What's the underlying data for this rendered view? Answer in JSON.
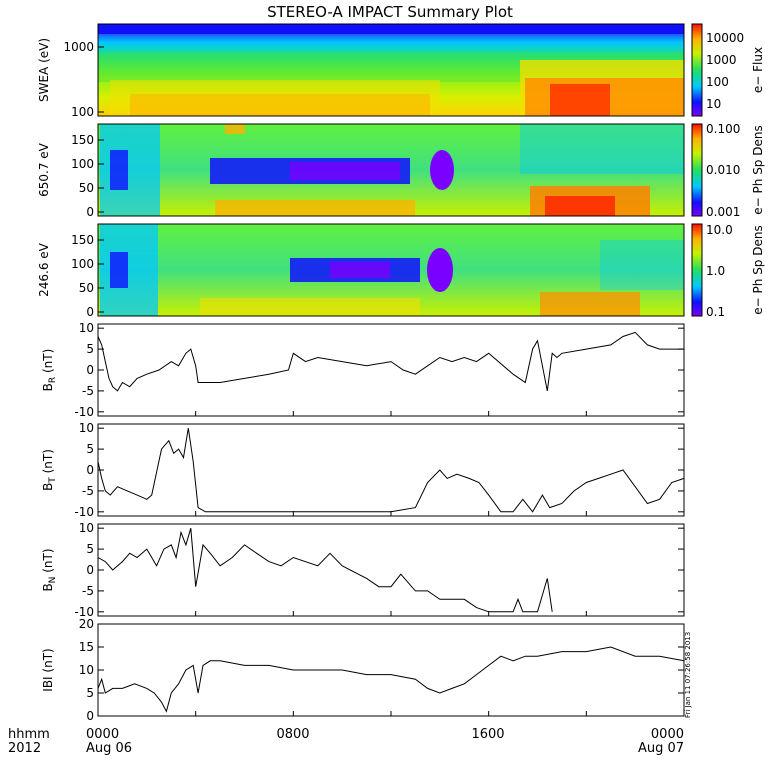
{
  "title": "STEREO-A IMPACT Summary Plot",
  "chart_data": [
    {
      "type": "heatmap",
      "id": "swea",
      "ylabel": "SWEA (eV)",
      "ytick_labels": [
        "1000",
        "100"
      ],
      "ylog": true,
      "ylim": [
        95,
        2000
      ],
      "colorbar_label": "e− Flux",
      "colorbar_ticks": [
        "10000",
        "1000",
        "100",
        "10"
      ],
      "colorbar_range": [
        1,
        30000
      ],
      "note": "spectrogram approximated",
      "intensity_by_time": [
        [
          0,
          0.5
        ],
        [
          1,
          0.52
        ],
        [
          2,
          0.55
        ],
        [
          4,
          0.6
        ],
        [
          6,
          0.57
        ],
        [
          8,
          0.5
        ],
        [
          10,
          0.48
        ],
        [
          12,
          0.5
        ],
        [
          14,
          0.55
        ],
        [
          16,
          0.55
        ],
        [
          17,
          0.6
        ],
        [
          17.8,
          0.8
        ],
        [
          18.5,
          0.88
        ],
        [
          20,
          0.85
        ],
        [
          22,
          0.8
        ],
        [
          24,
          0.78
        ]
      ]
    },
    {
      "type": "heatmap",
      "id": "pad650",
      "ylabel": "650.7 eV",
      "yticks": [
        0,
        50,
        100,
        150
      ],
      "ylim": [
        -10,
        180
      ],
      "colorbar_label": "e− Ph Sp Dens",
      "colorbar_ticks": [
        "0.100",
        "0.010",
        "0.001"
      ],
      "colorbar_range": [
        0.001,
        0.1
      ]
    },
    {
      "type": "heatmap",
      "id": "pad246",
      "ylabel": "246.6 eV",
      "yticks": [
        0,
        50,
        100,
        150
      ],
      "ylim": [
        -10,
        180
      ],
      "colorbar_label": "e− Ph Sp Dens",
      "colorbar_ticks": [
        "10.0",
        "1.0",
        "0.1"
      ],
      "colorbar_range": [
        0.1,
        10
      ]
    },
    {
      "type": "line",
      "id": "br",
      "ylabel_main": "B",
      "ylabel_sub": "R",
      "ylabel_unit": " (nT)",
      "yticks": [
        -10,
        -5,
        0,
        5,
        10
      ],
      "ylim": [
        -11,
        11
      ],
      "x_hours": [
        0,
        0.15,
        0.3,
        0.45,
        0.6,
        0.8,
        1.0,
        1.3,
        1.6,
        2.0,
        2.5,
        3.0,
        3.3,
        3.6,
        3.8,
        4.0,
        4.1,
        4.5,
        5,
        6,
        7,
        7.8,
        8.0,
        8.5,
        9,
        10,
        11,
        12,
        12.5,
        13,
        13.5,
        14,
        14.5,
        15,
        15.5,
        16,
        17,
        17.5,
        17.8,
        18.0,
        18.2,
        18.4,
        18.6,
        18.8,
        19,
        20,
        21,
        21.5,
        22,
        22.5,
        23,
        24
      ],
      "values": [
        8,
        6,
        2,
        -2,
        -4,
        -5,
        -3,
        -4,
        -2,
        -1,
        0,
        2,
        1,
        4,
        5,
        1,
        -3,
        -3,
        -3,
        -2,
        -1,
        0,
        4,
        2,
        3,
        2,
        1,
        2,
        0,
        -1,
        1,
        3,
        2,
        3,
        2,
        4,
        -1,
        -3,
        5,
        7,
        1,
        -5,
        4,
        3,
        4,
        5,
        6,
        8,
        9,
        6,
        5,
        5
      ]
    },
    {
      "type": "line",
      "id": "bt",
      "ylabel_main": "B",
      "ylabel_sub": "T",
      "ylabel_unit": " (nT)",
      "yticks": [
        -10,
        -5,
        0,
        5,
        10
      ],
      "ylim": [
        -11,
        11
      ],
      "x_hours": [
        0,
        0.15,
        0.3,
        0.5,
        0.8,
        1.2,
        1.6,
        2.0,
        2.2,
        2.6,
        2.9,
        3.1,
        3.3,
        3.5,
        3.7,
        3.9,
        4.1,
        4.4,
        5,
        6,
        7,
        8,
        9,
        10,
        11,
        12,
        13.0,
        13.5,
        14.0,
        14.3,
        14.7,
        15.2,
        15.6,
        16.0,
        16.5,
        17.0,
        17.4,
        17.8,
        18.2,
        18.5,
        19,
        19.5,
        20,
        20.5,
        21,
        21.5,
        22.0,
        22.5,
        23,
        23.5,
        24
      ],
      "values": [
        2,
        -2,
        -5,
        -6,
        -4,
        -5,
        -6,
        -7,
        -6,
        5,
        7,
        4,
        5,
        3,
        10,
        2,
        -9,
        -10,
        -10,
        -10,
        -10,
        -10,
        -10,
        -10,
        -10,
        -10,
        -9,
        -3,
        0,
        -2,
        -1,
        -2,
        -3,
        -6,
        -10,
        -10,
        -7,
        -10,
        -6,
        -9,
        -8,
        -5,
        -3,
        -2,
        -1,
        0,
        -4,
        -8,
        -7,
        -3,
        -2
      ]
    },
    {
      "type": "line",
      "id": "bn",
      "ylabel_main": "B",
      "ylabel_sub": "N",
      "ylabel_unit": " (nT)",
      "yticks": [
        -10,
        -5,
        0,
        5,
        10
      ],
      "ylim": [
        -11,
        11
      ],
      "x_hours": [
        0,
        0.3,
        0.6,
        1.0,
        1.3,
        1.6,
        2.0,
        2.4,
        2.7,
        3.0,
        3.2,
        3.4,
        3.6,
        3.8,
        4.0,
        4.3,
        4.6,
        5.0,
        5.5,
        6.0,
        6.5,
        7,
        7.5,
        8,
        9,
        9.5,
        10,
        11,
        11.5,
        12.0,
        12.4,
        13.0,
        13.5,
        14,
        14.5,
        15.0,
        15.5,
        16.0,
        16.5,
        17.0,
        17.2,
        17.4,
        17.6,
        17.8,
        18.0,
        18.4,
        18.6
      ],
      "values": [
        3,
        2,
        0,
        2,
        4,
        3,
        5,
        1,
        5,
        6,
        3,
        9,
        6,
        10,
        -4,
        6,
        4,
        1,
        3,
        6,
        4,
        2,
        1,
        3,
        1,
        4,
        1,
        -2,
        -4,
        -4,
        -1,
        -5,
        -5,
        -7,
        -7,
        -7,
        -9,
        -10,
        -10,
        -10,
        -7,
        -10,
        -10,
        -10,
        -10,
        -2,
        -10
      ]
    },
    {
      "type": "line",
      "id": "bmag",
      "ylabel_main": "IBI",
      "ylabel_sub": "",
      "ylabel_unit": " (nT)",
      "yticks": [
        0,
        5,
        10,
        15,
        20
      ],
      "ylim": [
        0,
        20
      ],
      "x_hours": [
        0,
        0.15,
        0.3,
        0.6,
        1.0,
        1.5,
        2.0,
        2.3,
        2.6,
        2.8,
        3.0,
        3.3,
        3.6,
        3.9,
        4.1,
        4.3,
        4.6,
        5,
        6,
        7,
        8,
        9,
        10,
        11,
        12,
        13,
        13.5,
        14.0,
        14.5,
        15.0,
        15.5,
        16.0,
        16.5,
        17.0,
        17.5,
        18.0,
        19,
        20,
        21,
        22,
        23,
        24
      ],
      "values": [
        6,
        8,
        5,
        6,
        6,
        7,
        6,
        5,
        3,
        1,
        5,
        7,
        10,
        11,
        5,
        11,
        12,
        12,
        11,
        11,
        10,
        10,
        10,
        9,
        9,
        8,
        6,
        5,
        6,
        7,
        9,
        11,
        13,
        12,
        13,
        13,
        14,
        14,
        15,
        13,
        13,
        12
      ]
    }
  ],
  "x_axis": {
    "xlim_hours": [
      0,
      24
    ],
    "row_label_1": "hhmm",
    "row_label_2": "2012",
    "ticks": [
      {
        "hour": 0,
        "time": "0000",
        "date": "Aug 06"
      },
      {
        "hour": 8,
        "time": "0800",
        "date": ""
      },
      {
        "hour": 16,
        "time": "1600",
        "date": ""
      },
      {
        "hour": 24,
        "time": "0000",
        "date": "Aug 07"
      }
    ]
  },
  "stamp": "Fri Jan 11 07:26:58 2013",
  "colors": {
    "line": "#000000",
    "axis": "#000000",
    "background": "#ffffff"
  }
}
